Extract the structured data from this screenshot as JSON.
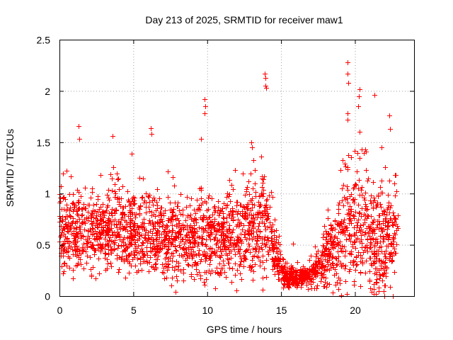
{
  "chart_data": {
    "type": "scatter",
    "title": "Day 213 of 2025, SRMTID for receiver maw1",
    "xlabel": "GPS time / hours",
    "ylabel": "SRMTID / TECUs",
    "xlim": [
      0,
      24
    ],
    "ylim": [
      0,
      2.5
    ],
    "xticks": [
      0,
      5,
      10,
      15,
      20
    ],
    "xtick_labels": [
      "0",
      "5",
      "10",
      "15",
      "20"
    ],
    "yticks": [
      0,
      0.5,
      1,
      1.5,
      2,
      2.5
    ],
    "ytick_labels": [
      "0",
      "0.5",
      "1",
      "1.5",
      "2",
      "2.5"
    ],
    "grid": true,
    "marker": "+",
    "color": "#ff0000",
    "series": [
      {
        "name": "SRMTID",
        "x_range": [
          0,
          22.9
        ],
        "profile_hours": [
          0,
          1,
          2,
          3,
          4,
          5,
          6,
          7,
          8,
          9,
          10,
          11,
          12,
          13,
          13.8,
          14.3,
          14.8,
          15.2,
          16,
          17,
          17.6,
          18.2,
          19,
          19.5,
          20,
          21,
          22,
          22.9
        ],
        "profile_median": [
          0.65,
          0.6,
          0.6,
          0.62,
          0.65,
          0.62,
          0.55,
          0.58,
          0.55,
          0.55,
          0.6,
          0.55,
          0.6,
          0.62,
          0.75,
          0.55,
          0.35,
          0.2,
          0.18,
          0.2,
          0.25,
          0.45,
          0.55,
          0.7,
          0.75,
          0.55,
          0.5,
          0.55
        ],
        "profile_spread": [
          0.3,
          0.35,
          0.3,
          0.3,
          0.35,
          0.3,
          0.3,
          0.35,
          0.3,
          0.3,
          0.35,
          0.3,
          0.35,
          0.35,
          0.45,
          0.25,
          0.15,
          0.08,
          0.08,
          0.1,
          0.15,
          0.3,
          0.4,
          0.5,
          0.5,
          0.45,
          0.45,
          0.35
        ],
        "peaks": [
          {
            "x": 1.3,
            "y": 1.66
          },
          {
            "x": 1.35,
            "y": 1.53
          },
          {
            "x": 3.6,
            "y": 1.56
          },
          {
            "x": 4.9,
            "y": 1.39
          },
          {
            "x": 6.2,
            "y": 1.64
          },
          {
            "x": 6.25,
            "y": 1.58
          },
          {
            "x": 9.8,
            "y": 1.92
          },
          {
            "x": 9.85,
            "y": 1.85
          },
          {
            "x": 9.82,
            "y": 1.78
          },
          {
            "x": 9.6,
            "y": 1.53
          },
          {
            "x": 13.0,
            "y": 1.5
          },
          {
            "x": 13.05,
            "y": 1.45
          },
          {
            "x": 13.9,
            "y": 2.17
          },
          {
            "x": 13.95,
            "y": 2.13
          },
          {
            "x": 13.92,
            "y": 2.05
          },
          {
            "x": 13.97,
            "y": 2.03
          },
          {
            "x": 19.5,
            "y": 2.28
          },
          {
            "x": 19.52,
            "y": 2.17
          },
          {
            "x": 19.55,
            "y": 2.08
          },
          {
            "x": 19.5,
            "y": 1.78
          },
          {
            "x": 19.52,
            "y": 1.72
          },
          {
            "x": 20.3,
            "y": 2.02
          },
          {
            "x": 20.25,
            "y": 1.95
          },
          {
            "x": 20.2,
            "y": 1.85
          },
          {
            "x": 20.3,
            "y": 1.6
          },
          {
            "x": 21.3,
            "y": 1.96
          },
          {
            "x": 21.8,
            "y": 1.45
          },
          {
            "x": 22.3,
            "y": 1.76
          },
          {
            "x": 22.35,
            "y": 1.63
          },
          {
            "x": 0.1,
            "y": 1.07
          },
          {
            "x": 17.3,
            "y": 0.48
          },
          {
            "x": 15.8,
            "y": 0.51
          }
        ]
      }
    ]
  }
}
